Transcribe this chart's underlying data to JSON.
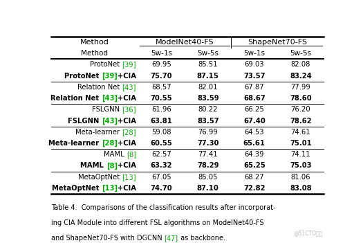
{
  "col_headers_sub": [
    "Method",
    "5w-1s",
    "5w-5s",
    "5w-1s",
    "5w-5s"
  ],
  "mn40_header": "ModelNet40-FS",
  "sn70_header": "ShapeNet70-FS",
  "rows": [
    {
      "method": "ProtoNet [39]",
      "ref": "39",
      "vals": [
        "69.95",
        "85.51",
        "69.03",
        "82.08"
      ],
      "bold": false
    },
    {
      "method": "ProtoNet [39]+CIA",
      "ref": "39",
      "vals": [
        "75.70",
        "87.15",
        "73.57",
        "83.24"
      ],
      "bold": true
    },
    {
      "method": "Relation Net [43]",
      "ref": "43",
      "vals": [
        "68.57",
        "82.01",
        "67.87",
        "77.99"
      ],
      "bold": false
    },
    {
      "method": "Relation Net [43]+CIA",
      "ref": "43",
      "vals": [
        "70.55",
        "83.59",
        "68.67",
        "78.60"
      ],
      "bold": true
    },
    {
      "method": "FSLGNN [36]",
      "ref": "36",
      "vals": [
        "61.96",
        "80.22",
        "66.25",
        "76.20"
      ],
      "bold": false
    },
    {
      "method": "FSLGNN [43]+CIA",
      "ref": "43",
      "vals": [
        "63.81",
        "83.57",
        "67.40",
        "78.62"
      ],
      "bold": true
    },
    {
      "method": "Meta-learner [28]",
      "ref": "28",
      "vals": [
        "59.08",
        "76.99",
        "64.53",
        "74.61"
      ],
      "bold": false
    },
    {
      "method": "Meta-learner [28]+CIA",
      "ref": "28",
      "vals": [
        "60.55",
        "77.30",
        "65.61",
        "75.01"
      ],
      "bold": true
    },
    {
      "method": "MAML [8]",
      "ref": "8",
      "vals": [
        "62.57",
        "77.41",
        "64.39",
        "74.11"
      ],
      "bold": false
    },
    {
      "method": "MAML [8]+CIA",
      "ref": "8",
      "vals": [
        "63.32",
        "78.29",
        "65.25",
        "75.03"
      ],
      "bold": true
    },
    {
      "method": "MetaOptNet [13]",
      "ref": "13",
      "vals": [
        "67.05",
        "85.05",
        "68.27",
        "81.06"
      ],
      "bold": false
    },
    {
      "method": "MetaOptNet [13]+CIA",
      "ref": "13",
      "vals": [
        "74.70",
        "87.10",
        "72.82",
        "83.08"
      ],
      "bold": true
    }
  ],
  "group_separators": [
    2,
    4,
    6,
    8,
    10
  ],
  "caption_lines": [
    "Table 4.  Comparisons of the classification results after incorporat-",
    "ing CIA Module into different FSL algorithms on ModelNet40-FS",
    "and ShapeNet70-FS with DGCNN [47] as backbone."
  ],
  "caption_ref": "47",
  "watermark": "@51CTO博客",
  "bg_color": "#ffffff",
  "text_color": "#000000",
  "green_color": "#00aa00"
}
